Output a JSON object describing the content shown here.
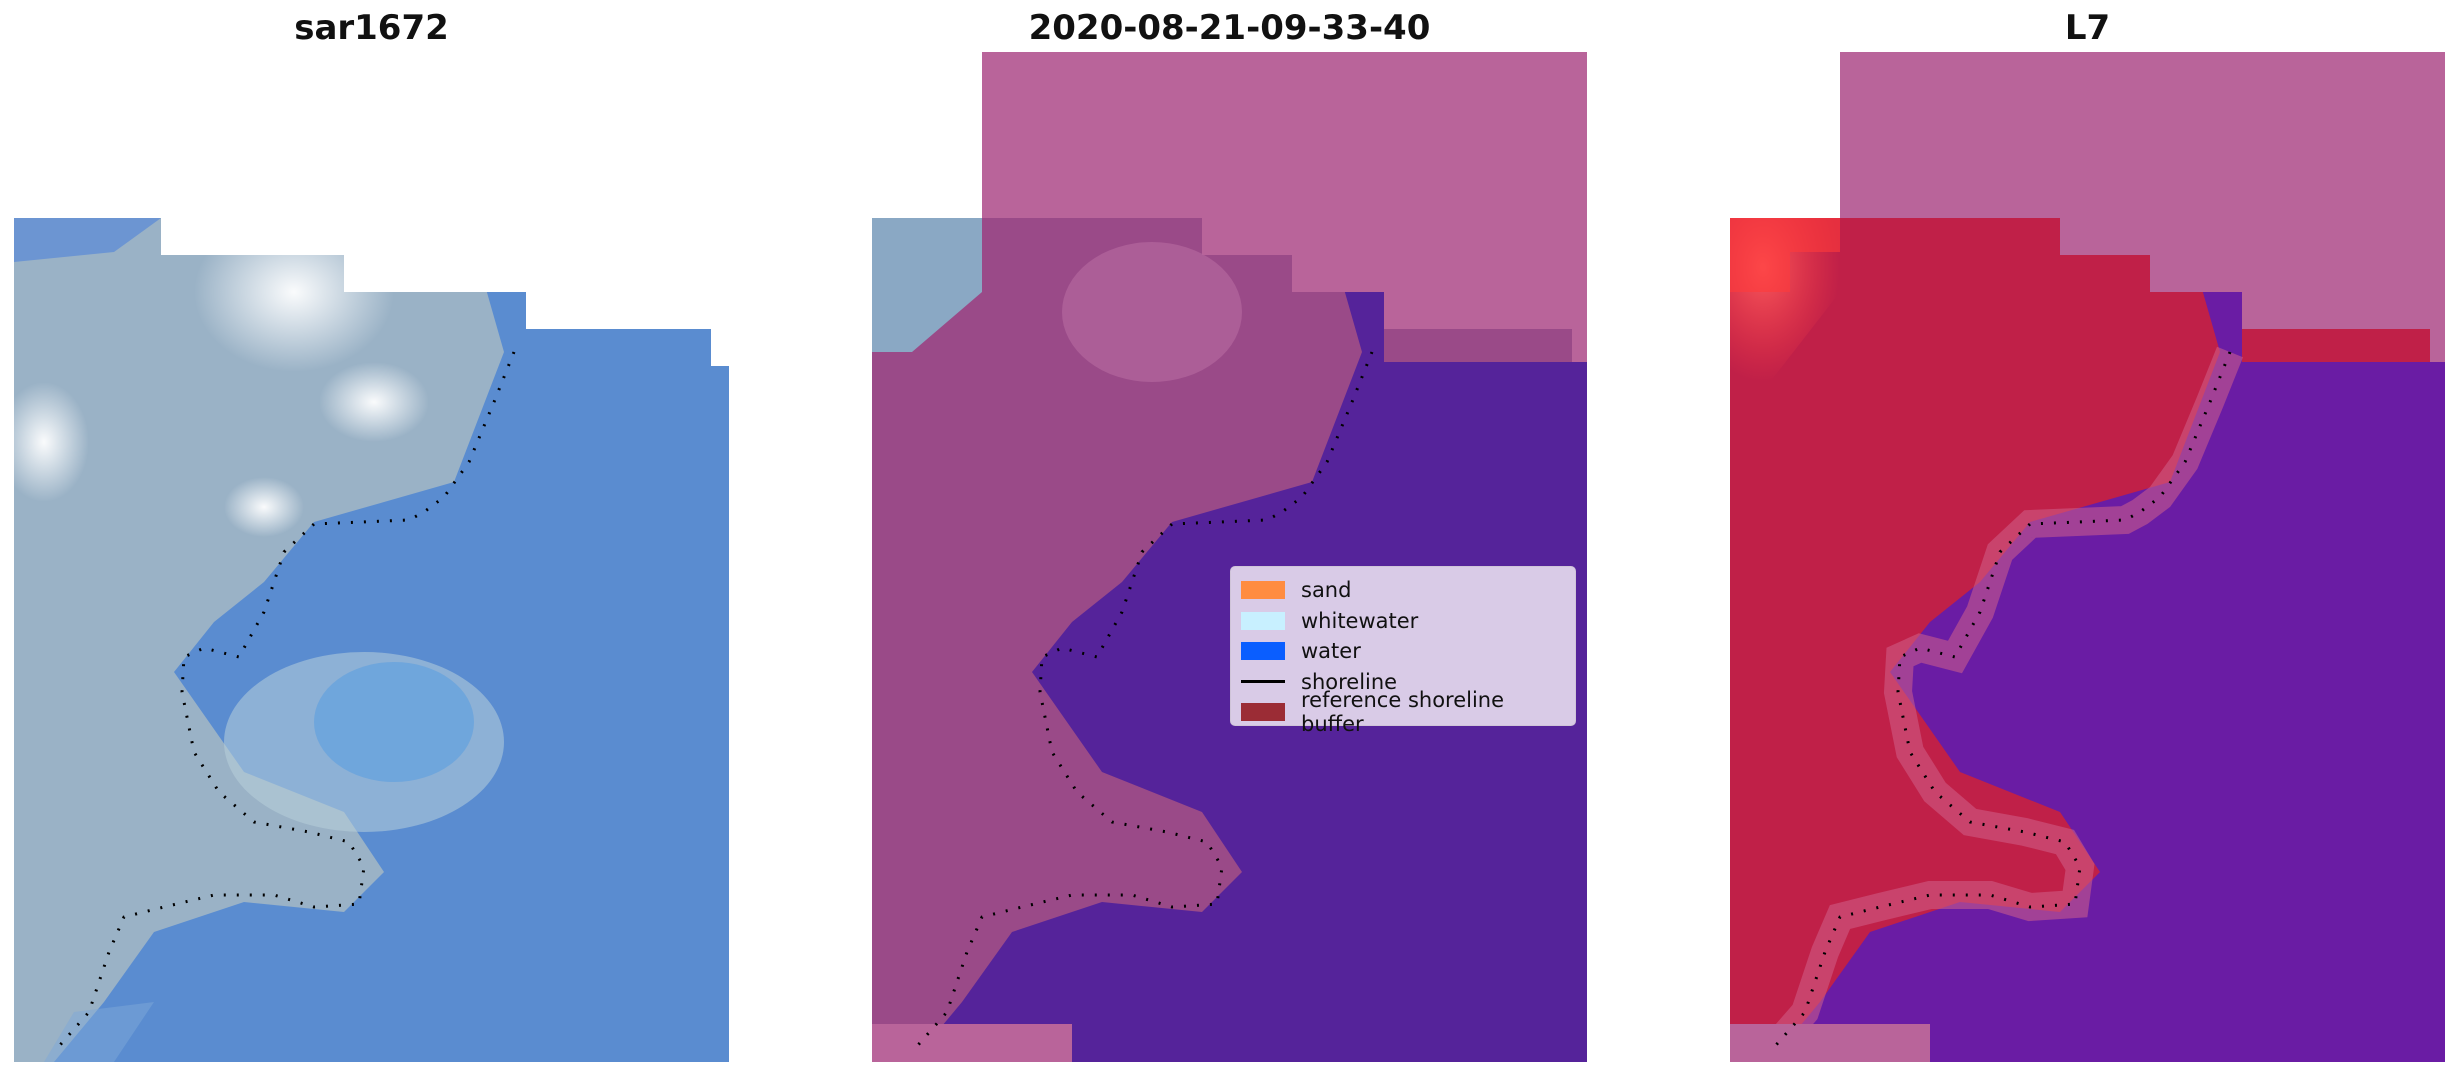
{
  "panels": [
    {
      "title": "sar1672"
    },
    {
      "title": "2020-08-21-09-33-40"
    },
    {
      "title": "L7"
    }
  ],
  "legend": {
    "items": [
      {
        "label": "sand",
        "color": "#ff8c40"
      },
      {
        "label": "whitewater",
        "color": "#c8f0ff"
      },
      {
        "label": "water",
        "color": "#0a5eff"
      },
      {
        "label": "shoreline",
        "color": "#000000"
      },
      {
        "label": "reference shoreline buffer",
        "color": "#9b2c35"
      }
    ]
  },
  "colors": {
    "rgb_water": "#5a8cd0",
    "rgb_land": "#9ab2c6",
    "cloud": "#f2f2f4",
    "class_land": "#9a4a88",
    "class_water": "#55239a",
    "class_nodata": "#b9649a",
    "index_land": "#c02048",
    "index_water": "#6a1ca4"
  }
}
